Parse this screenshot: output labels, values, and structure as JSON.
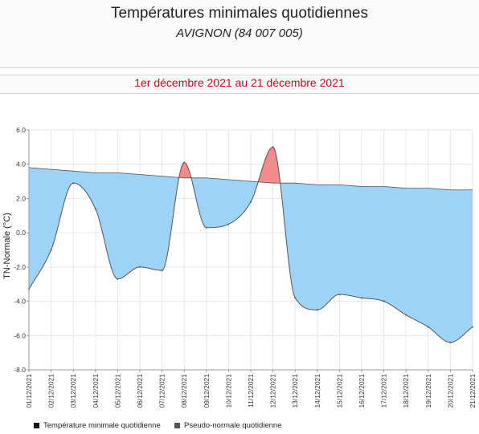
{
  "header": {
    "title": "Températures minimales quotidiennes",
    "subtitle": "AVIGNON (84 007 005)"
  },
  "period_label": "1er décembre 2021 au 21 décembre 2021",
  "legend": [
    {
      "label": "Température minimale quotidienne",
      "color": "#111111"
    },
    {
      "label": "Pseudo-normale quotidienne",
      "color": "#555555"
    }
  ],
  "colors": {
    "below_normal": "#9dd3f7",
    "above_normal": "#f28b8b",
    "line": "#555555",
    "grid": "#e6e6e6"
  },
  "chart_data": {
    "type": "area",
    "ylabel": "TN-Normale (°C)",
    "ylim": [
      -8.0,
      6.0
    ],
    "yticks": [
      "6.0",
      "4.0",
      "2.0",
      "0.0",
      "-2.0",
      "-4.0",
      "-6.0",
      "-8.0"
    ],
    "categories": [
      "01/12/2021",
      "02/12/2021",
      "03/12/2021",
      "04/12/2021",
      "05/12/2021",
      "06/12/2021",
      "07/12/2021",
      "08/12/2021",
      "09/12/2021",
      "10/12/2021",
      "11/12/2021",
      "12/12/2021",
      "13/12/2021",
      "14/12/2021",
      "15/12/2021",
      "16/12/2021",
      "17/12/2021",
      "18/12/2021",
      "19/12/2021",
      "20/12/2021",
      "21/12/2021"
    ],
    "series": [
      {
        "name": "Température minimale quotidienne",
        "values": [
          -3.3,
          -1.0,
          2.9,
          1.4,
          -2.7,
          -2.0,
          -2.2,
          4.1,
          0.3,
          0.5,
          1.8,
          5.0,
          -3.8,
          -4.5,
          -3.6,
          -3.8,
          -4.0,
          -4.8,
          -5.5,
          -6.4,
          -5.5
        ]
      },
      {
        "name": "Pseudo-normale quotidienne",
        "values": [
          3.8,
          3.7,
          3.6,
          3.5,
          3.5,
          3.4,
          3.3,
          3.2,
          3.2,
          3.1,
          3.0,
          2.9,
          2.9,
          2.8,
          2.8,
          2.7,
          2.7,
          2.6,
          2.6,
          2.5,
          2.5
        ]
      }
    ]
  }
}
